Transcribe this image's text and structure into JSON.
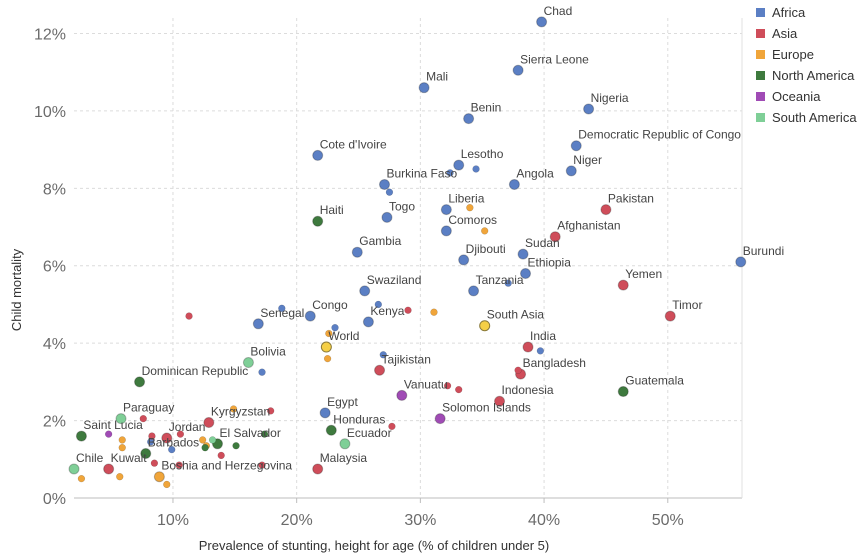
{
  "chart_data": {
    "type": "scatter",
    "title": "",
    "xlabel": "Prevalence of stunting, height for age (% of children under 5)",
    "ylabel": "Child mortality",
    "xlim": [
      2,
      56
    ],
    "ylim": [
      0,
      12.4
    ],
    "x_ticks": [
      {
        "v": 10,
        "label": "10%"
      },
      {
        "v": 20,
        "label": "20%"
      },
      {
        "v": 30,
        "label": "30%"
      },
      {
        "v": 40,
        "label": "40%"
      },
      {
        "v": 50,
        "label": "50%"
      }
    ],
    "y_ticks": [
      {
        "v": 0,
        "label": "0%"
      },
      {
        "v": 2,
        "label": "2%"
      },
      {
        "v": 4,
        "label": "4%"
      },
      {
        "v": 6,
        "label": "6%"
      },
      {
        "v": 8,
        "label": "8%"
      },
      {
        "v": 10,
        "label": "10%"
      },
      {
        "v": 12,
        "label": "12%"
      }
    ],
    "grid": true,
    "legend_position": "top-right",
    "colors": {
      "Africa": "#5b7fc4",
      "Asia": "#cf4d5a",
      "Europe": "#f0a53a",
      "North America": "#3e7a3e",
      "Oceania": "#a04bb5",
      "South America": "#7fcf97",
      "World": "#f5cf46"
    },
    "series": [
      {
        "name": "Africa",
        "points": [
          {
            "x": 39.8,
            "y": 12.3,
            "label": "Chad"
          },
          {
            "x": 37.9,
            "y": 11.05,
            "label": "Sierra Leone"
          },
          {
            "x": 30.3,
            "y": 10.6,
            "label": "Mali"
          },
          {
            "x": 43.6,
            "y": 10.05,
            "label": "Nigeria"
          },
          {
            "x": 33.9,
            "y": 9.8,
            "label": "Benin"
          },
          {
            "x": 42.6,
            "y": 9.1,
            "label": "Democratic Republic of Congo"
          },
          {
            "x": 21.7,
            "y": 8.85,
            "label": "Cote d'Ivoire"
          },
          {
            "x": 33.1,
            "y": 8.6,
            "label": "Lesotho"
          },
          {
            "x": 42.2,
            "y": 8.45,
            "label": "Niger"
          },
          {
            "x": 37.6,
            "y": 8.1,
            "label": "Angola"
          },
          {
            "x": 27.1,
            "y": 8.1,
            "label": "Burkina Faso"
          },
          {
            "x": 32.1,
            "y": 7.45,
            "label": "Liberia"
          },
          {
            "x": 27.3,
            "y": 7.25,
            "label": "Togo"
          },
          {
            "x": 32.1,
            "y": 6.9,
            "label": "Comoros"
          },
          {
            "x": 24.9,
            "y": 6.35,
            "label": "Gambia"
          },
          {
            "x": 38.3,
            "y": 6.3,
            "label": "Sudan"
          },
          {
            "x": 33.5,
            "y": 6.15,
            "label": "Djibouti"
          },
          {
            "x": 38.5,
            "y": 5.8,
            "label": "Ethiopia"
          },
          {
            "x": 55.9,
            "y": 6.1,
            "label": "Burundi"
          },
          {
            "x": 25.5,
            "y": 5.35,
            "label": "Swaziland"
          },
          {
            "x": 34.3,
            "y": 5.35,
            "label": "Tanzania"
          },
          {
            "x": 21.1,
            "y": 4.7,
            "label": "Congo"
          },
          {
            "x": 16.9,
            "y": 4.5,
            "label": "Senegal"
          },
          {
            "x": 25.8,
            "y": 4.55,
            "label": "Kenya"
          },
          {
            "x": 22.3,
            "y": 2.2,
            "label": "Egypt"
          },
          {
            "x": 32.4,
            "y": 8.4
          },
          {
            "x": 34.5,
            "y": 8.5
          },
          {
            "x": 27.5,
            "y": 7.9
          },
          {
            "x": 18.8,
            "y": 4.9
          },
          {
            "x": 26.6,
            "y": 5.0
          },
          {
            "x": 23.1,
            "y": 4.4
          },
          {
            "x": 37.1,
            "y": 5.55
          },
          {
            "x": 39.7,
            "y": 3.8
          },
          {
            "x": 27.0,
            "y": 3.7
          },
          {
            "x": 17.2,
            "y": 3.25
          },
          {
            "x": 9.9,
            "y": 1.25
          },
          {
            "x": 8.2,
            "y": 1.45
          }
        ]
      },
      {
        "name": "Asia",
        "points": [
          {
            "x": 45.0,
            "y": 7.45,
            "label": "Pakistan"
          },
          {
            "x": 40.9,
            "y": 6.75,
            "label": "Afghanistan"
          },
          {
            "x": 46.4,
            "y": 5.5,
            "label": "Yemen"
          },
          {
            "x": 50.2,
            "y": 4.7,
            "label": "Timor"
          },
          {
            "x": 38.7,
            "y": 3.9,
            "label": "India"
          },
          {
            "x": 38.1,
            "y": 3.2,
            "label": "Bangladesh"
          },
          {
            "x": 26.7,
            "y": 3.3,
            "label": "Tajikistan"
          },
          {
            "x": 36.4,
            "y": 2.5,
            "label": "Indonesia"
          },
          {
            "x": 12.9,
            "y": 1.95,
            "label": "Kyrgyzstan"
          },
          {
            "x": 9.5,
            "y": 1.55,
            "label": "Jordan"
          },
          {
            "x": 4.8,
            "y": 0.75,
            "label": "Kuwait"
          },
          {
            "x": 21.7,
            "y": 0.75,
            "label": "Malaysia"
          },
          {
            "x": 29.0,
            "y": 4.85
          },
          {
            "x": 11.3,
            "y": 4.7
          },
          {
            "x": 37.9,
            "y": 3.3
          },
          {
            "x": 32.2,
            "y": 2.9
          },
          {
            "x": 33.1,
            "y": 2.8
          },
          {
            "x": 17.9,
            "y": 2.25
          },
          {
            "x": 27.7,
            "y": 1.85
          },
          {
            "x": 7.6,
            "y": 2.05
          },
          {
            "x": 8.3,
            "y": 1.6
          },
          {
            "x": 10.6,
            "y": 1.65
          },
          {
            "x": 13.9,
            "y": 1.1
          },
          {
            "x": 17.2,
            "y": 0.85
          },
          {
            "x": 10.5,
            "y": 0.85
          },
          {
            "x": 8.5,
            "y": 0.9
          }
        ]
      },
      {
        "name": "Europe",
        "points": [
          {
            "x": 8.9,
            "y": 0.55,
            "label": "Boshia and Herzegovina"
          },
          {
            "x": 31.1,
            "y": 4.8
          },
          {
            "x": 35.2,
            "y": 6.9
          },
          {
            "x": 34.0,
            "y": 7.5
          },
          {
            "x": 22.6,
            "y": 4.25
          },
          {
            "x": 22.5,
            "y": 3.6
          },
          {
            "x": 14.9,
            "y": 2.3
          },
          {
            "x": 12.4,
            "y": 1.5
          },
          {
            "x": 5.9,
            "y": 1.5
          },
          {
            "x": 5.9,
            "y": 1.3
          },
          {
            "x": 5.7,
            "y": 0.55
          },
          {
            "x": 9.5,
            "y": 0.35
          },
          {
            "x": 2.6,
            "y": 0.5
          },
          {
            "x": 12.7,
            "y": 1.35
          }
        ]
      },
      {
        "name": "North America",
        "points": [
          {
            "x": 46.4,
            "y": 2.75,
            "label": "Guatemala"
          },
          {
            "x": 21.7,
            "y": 7.15,
            "label": "Haiti"
          },
          {
            "x": 7.3,
            "y": 3.0,
            "label": "Dominican Republic"
          },
          {
            "x": 22.8,
            "y": 1.75,
            "label": "Honduras"
          },
          {
            "x": 13.6,
            "y": 1.4,
            "label": "El Salvador"
          },
          {
            "x": 7.8,
            "y": 1.15,
            "label": "Barbados"
          },
          {
            "x": 2.6,
            "y": 1.6,
            "label": "Saint Lucia"
          },
          {
            "x": 15.1,
            "y": 1.35
          },
          {
            "x": 17.4,
            "y": 1.65
          },
          {
            "x": 12.6,
            "y": 1.3
          }
        ]
      },
      {
        "name": "Oceania",
        "points": [
          {
            "x": 28.5,
            "y": 2.65,
            "label": "Vanuatu"
          },
          {
            "x": 31.6,
            "y": 2.05,
            "label": "Solomon Islands"
          },
          {
            "x": 4.8,
            "y": 1.65
          }
        ]
      },
      {
        "name": "South America",
        "points": [
          {
            "x": 16.1,
            "y": 3.5,
            "label": "Bolivia"
          },
          {
            "x": 5.8,
            "y": 2.05,
            "label": "Paraguay"
          },
          {
            "x": 23.9,
            "y": 1.4,
            "label": "Ecuador"
          },
          {
            "x": 2.0,
            "y": 0.75,
            "label": "Chile"
          },
          {
            "x": 13.2,
            "y": 1.5
          }
        ]
      },
      {
        "name": "World",
        "points": [
          {
            "x": 22.4,
            "y": 3.9,
            "label": "World"
          }
        ]
      },
      {
        "name": "South Asia",
        "points": [
          {
            "x": 35.2,
            "y": 4.45,
            "label": "South Asia"
          }
        ]
      }
    ],
    "legend": [
      "Africa",
      "Asia",
      "Europe",
      "North America",
      "Oceania",
      "South America"
    ]
  }
}
